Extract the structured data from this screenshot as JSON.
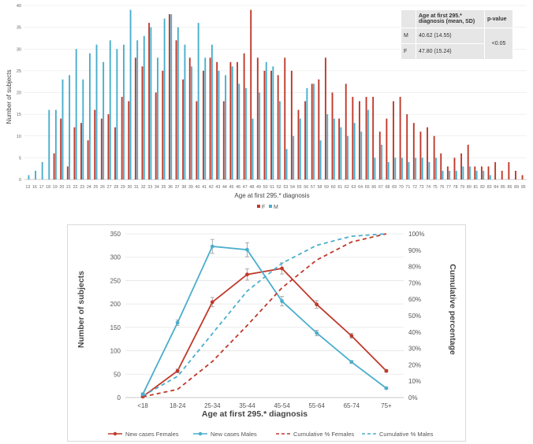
{
  "chart_data": [
    {
      "type": "bar",
      "title": "",
      "xlabel": "Age at first 295.* diagnosis",
      "ylabel": "Number of subjects",
      "ylim": [
        0,
        40
      ],
      "yticks": [
        "0",
        "5",
        "10",
        "15",
        "20",
        "25",
        "30",
        "35",
        "40"
      ],
      "categories": [
        "13",
        "16",
        "17",
        "18",
        "19",
        "20",
        "21",
        "22",
        "23",
        "24",
        "25",
        "26",
        "27",
        "28",
        "29",
        "30",
        "31",
        "32",
        "33",
        "34",
        "35",
        "36",
        "37",
        "38",
        "39",
        "40",
        "41",
        "42",
        "43",
        "44",
        "45",
        "46",
        "47",
        "48",
        "49",
        "50",
        "51",
        "52",
        "53",
        "54",
        "55",
        "56",
        "57",
        "58",
        "59",
        "60",
        "61",
        "62",
        "63",
        "64",
        "65",
        "66",
        "67",
        "68",
        "69",
        "70",
        "71",
        "72",
        "73",
        "74",
        "75",
        "76",
        "77",
        "78",
        "79",
        "80",
        "81",
        "82",
        "83",
        "84",
        "85",
        "86",
        "89",
        "95"
      ],
      "series": [
        {
          "name": "F",
          "color": "#c0392b",
          "values": [
            0,
            0,
            0,
            0,
            6,
            14,
            3,
            12,
            13,
            9,
            16,
            14,
            15,
            12,
            19,
            18,
            28,
            26,
            36,
            20,
            25,
            38,
            32,
            23,
            28,
            18,
            25,
            28,
            27,
            18,
            27,
            27,
            29,
            39,
            28,
            25,
            25,
            24,
            28,
            25,
            16,
            18,
            22,
            23,
            28,
            20,
            14,
            22,
            19,
            18,
            19,
            19,
            11,
            14,
            18,
            19,
            15,
            13,
            11,
            12,
            10,
            6,
            3,
            5,
            6,
            8,
            3,
            3,
            3,
            4,
            2,
            4,
            2,
            1
          ]
        },
        {
          "name": "M",
          "color": "#4aaecd",
          "values": [
            1,
            2,
            4,
            16,
            16,
            23,
            24,
            30,
            23,
            29,
            31,
            27,
            32,
            30,
            31,
            39,
            32,
            33,
            35,
            28,
            37,
            38,
            35,
            31,
            26,
            36,
            28,
            31,
            25,
            24,
            26,
            22,
            21,
            14,
            20,
            27,
            26,
            18,
            7,
            10,
            14,
            21,
            22,
            9,
            15,
            14,
            12,
            10,
            13,
            11,
            16,
            5,
            8,
            4,
            5,
            5,
            4,
            5,
            5,
            4,
            5,
            2,
            2,
            2,
            3,
            3,
            2,
            2,
            1,
            0,
            0,
            0,
            0,
            0
          ]
        }
      ],
      "legend": [
        "F",
        "M"
      ],
      "table": {
        "header": [
          "",
          "Age at first 295.* diagnosis (mean, SD)",
          "p-value"
        ],
        "rows": [
          {
            "group": "M",
            "value": "40.62 (14.55)"
          },
          {
            "group": "F",
            "value": "47.80 (15.24)"
          }
        ],
        "p_value": "<0.05"
      }
    },
    {
      "type": "line",
      "title": "",
      "xlabel": "Age at first 295.* diagnosis",
      "ylabel": "Number of subjects",
      "y2label": "Cumulative percentage",
      "ylim": [
        0,
        350
      ],
      "y2lim": [
        0,
        100
      ],
      "yticks": [
        "0",
        "50",
        "100",
        "150",
        "200",
        "250",
        "300",
        "350"
      ],
      "y2ticks": [
        "0%",
        "10%",
        "20%",
        "30%",
        "40%",
        "50%",
        "60%",
        "70%",
        "80%",
        "90%",
        "100%"
      ],
      "categories": [
        "<18",
        "18-24",
        "25-34",
        "35-44",
        "45-54",
        "55-64",
        "65-74",
        "75+"
      ],
      "series": [
        {
          "name": "New cases Females",
          "axis": "left",
          "style": "solid",
          "color": "#c0392b",
          "values": [
            2,
            57,
            204,
            263,
            276,
            199,
            132,
            57
          ],
          "errors": [
            2,
            4,
            10,
            12,
            12,
            8,
            5,
            3
          ]
        },
        {
          "name": "New cases Males",
          "axis": "left",
          "style": "solid",
          "color": "#4aaecd",
          "values": [
            7,
            160,
            323,
            316,
            206,
            138,
            76,
            20
          ],
          "errors": [
            3,
            6,
            15,
            15,
            10,
            6,
            3,
            2
          ]
        },
        {
          "name": "Cumulative % Females",
          "axis": "right",
          "style": "dashed",
          "color": "#c0392b",
          "values": [
            0.5,
            5,
            22,
            44,
            67,
            84,
            95,
            100
          ]
        },
        {
          "name": "Cumulative % Males",
          "axis": "right",
          "style": "dashed",
          "color": "#4aaecd",
          "values": [
            1,
            13,
            39,
            65,
            82,
            93,
            98.5,
            100
          ]
        }
      ],
      "legend": [
        "New cases Females",
        "New cases Males",
        "Cumulative % Females",
        "Cumulative % Males"
      ]
    }
  ]
}
